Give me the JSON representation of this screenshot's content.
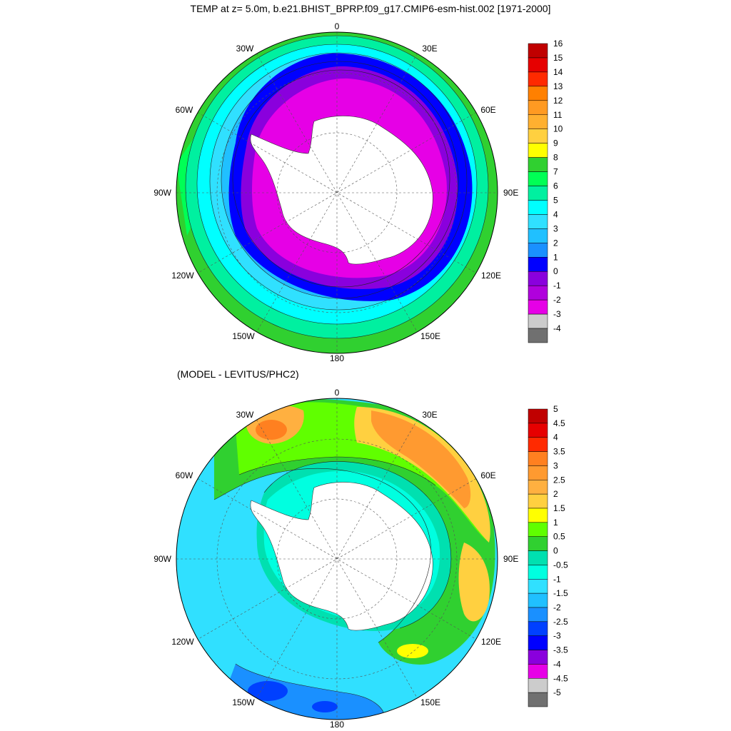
{
  "top_panel": {
    "title": "TEMP at z=   5.0m, b.e21.BHIST_BPRP.f09_g17.CMIP6-esm-hist.002 [1971-2000]",
    "longitude_labels": {
      "lon0": "0",
      "lon30e": "30E",
      "lon60e": "60E",
      "lon90e": "90E",
      "lon120e": "120E",
      "lon150e": "150E",
      "lon180": "180",
      "lon150w": "150W",
      "lon120w": "120W",
      "lon90w": "90W",
      "lon60w": "60W",
      "lon30w": "30W"
    },
    "colorbar": {
      "labels": [
        "16",
        "15",
        "14",
        "13",
        "12",
        "11",
        "10",
        "9",
        "8",
        "7",
        "6",
        "5",
        "4",
        "3",
        "2",
        "1",
        "0",
        "-1",
        "-2",
        "-3",
        "-4"
      ],
      "colors": [
        "#c00000",
        "#e60000",
        "#ff2a00",
        "#ff8000",
        "#ff9a22",
        "#ffb030",
        "#ffd040",
        "#ffff00",
        "#30d030",
        "#00ff55",
        "#00f0a0",
        "#00ffff",
        "#30e0ff",
        "#20c0ff",
        "#1a90ff",
        "#0000ff",
        "#8a00dd",
        "#b000dd",
        "#e600e6",
        "#cccccc",
        "#707070"
      ]
    }
  },
  "bottom_panel": {
    "title": "(MODEL - LEVITUS/PHC2)",
    "longitude_labels": {
      "lon0": "0",
      "lon30e": "30E",
      "lon60e": "60E",
      "lon90e": "90E",
      "lon120e": "120E",
      "lon150e": "150E",
      "lon180": "180",
      "lon150w": "150W",
      "lon120w": "120W",
      "lon90w": "90W",
      "lon60w": "60W",
      "lon30w": "30W"
    },
    "colorbar": {
      "labels": [
        "5",
        "4.5",
        "4",
        "3.5",
        "3",
        "2.5",
        "2",
        "1.5",
        "1",
        "0.5",
        "0",
        "-0.5",
        "-1",
        "-1.5",
        "-2",
        "-2.5",
        "-3",
        "-3.5",
        "-4",
        "-4.5",
        "-5"
      ],
      "colors": [
        "#c00000",
        "#e60000",
        "#ff2a00",
        "#ff8020",
        "#ff9a30",
        "#ffb040",
        "#ffd040",
        "#ffff00",
        "#60ff00",
        "#30d030",
        "#00e0b0",
        "#00ffe0",
        "#30e0ff",
        "#20c0ff",
        "#1a90ff",
        "#0040ff",
        "#0000ff",
        "#8a00dd",
        "#e600e6",
        "#cccccc",
        "#707070"
      ]
    }
  }
}
